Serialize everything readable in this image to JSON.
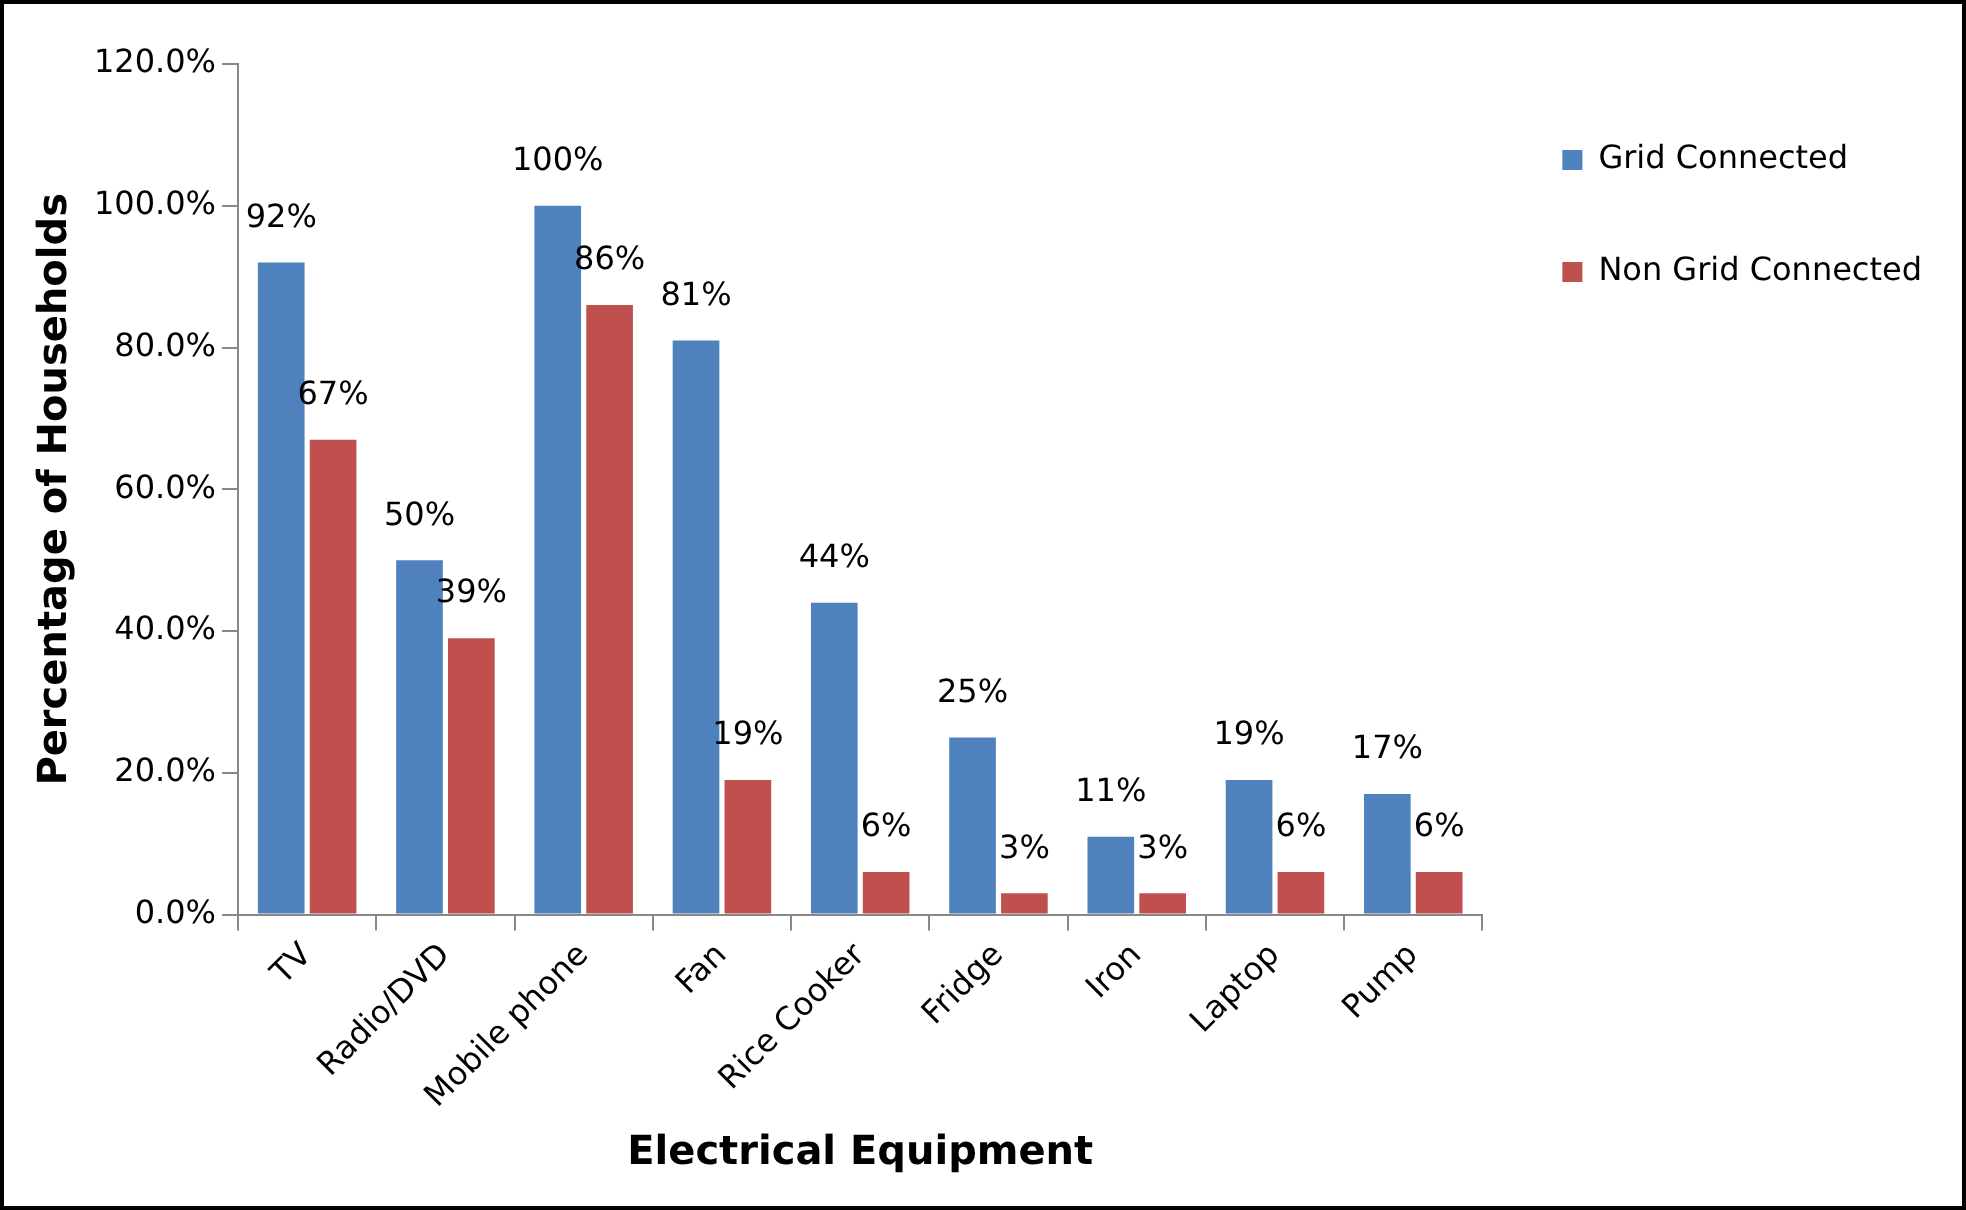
{
  "chart_data": {
    "type": "bar",
    "xlabel": "Electrical Equipment",
    "ylabel": "Percentage of Households",
    "categories": [
      "TV",
      "Radio/DVD",
      "Mobile phone",
      "Fan",
      "Rice Cooker",
      "Fridge",
      "Iron",
      "Laptop",
      "Pump"
    ],
    "series": [
      {
        "name": "Grid Connected",
        "color": "#4f81bd",
        "values": [
          92,
          50,
          100,
          81,
          44,
          25,
          11,
          19,
          17
        ],
        "value_labels": [
          "92%",
          "50%",
          "100%",
          "81%",
          "44%",
          "25%",
          "11%",
          "19%",
          "17%"
        ]
      },
      {
        "name": "Non Grid Connected",
        "color": "#c0504d",
        "values": [
          67,
          39,
          86,
          19,
          6,
          3,
          3,
          6,
          6
        ],
        "value_labels": [
          "67%",
          "39%",
          "86%",
          "19%",
          "6%",
          "3%",
          "3%",
          "6%",
          "6%"
        ]
      }
    ],
    "ylim": [
      0,
      120
    ],
    "yticks": [
      {
        "value": 0,
        "label": "0.0%"
      },
      {
        "value": 20,
        "label": "20.0%"
      },
      {
        "value": 40,
        "label": "40.0%"
      },
      {
        "value": 60,
        "label": "60.0%"
      },
      {
        "value": 80,
        "label": "80.0%"
      },
      {
        "value": 100,
        "label": "100.0%"
      },
      {
        "value": 120,
        "label": "120.0%"
      }
    ],
    "grid": false,
    "legend": "right"
  }
}
